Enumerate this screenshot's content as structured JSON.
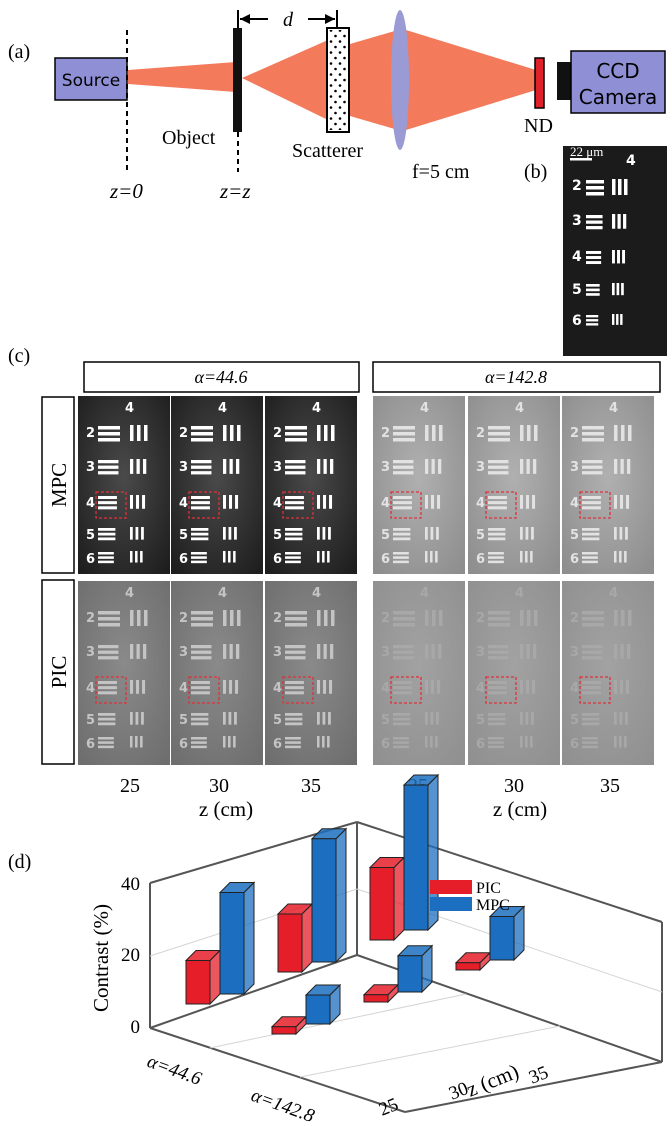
{
  "panel_a": {
    "label": "(a)",
    "source_label": "Source",
    "object_label": "Object",
    "scatterer_label": "Scatterer",
    "lens_label": "f=5 cm",
    "nd_label": "ND",
    "camera_label_line1": "CCD",
    "camera_label_line2": "Camera",
    "distance_label": "d",
    "z0_label": "z=0",
    "zz_label": "z=z"
  },
  "panel_b": {
    "label": "(b)",
    "scale_bar": "22 μm",
    "group_number": "4",
    "element_numbers": [
      "2",
      "3",
      "4",
      "5",
      "6"
    ]
  },
  "panel_c": {
    "label": "(c)",
    "alpha_left": "α=44.6",
    "alpha_right": "α=142.8",
    "row_labels": [
      "MPC",
      "PIC"
    ],
    "z_ticks": [
      "25",
      "30",
      "35"
    ],
    "z_axis_label": "z (cm)"
  },
  "panel_d": {
    "label": "(d)",
    "ylabel": "Contrast (%)",
    "yticks": [
      "0",
      "20",
      "40"
    ],
    "alpha_ticks": [
      "α=44.6",
      "α=142.8"
    ],
    "z_ticks": [
      "25",
      "30",
      "35"
    ],
    "z_axis_label": "z (cm)",
    "legend": [
      "PIC",
      "MPC"
    ]
  },
  "colors": {
    "beam": "#f47a5c",
    "box_fill": "#8f8fd6",
    "lens": "#9a9ad4",
    "nd_filter": "#e0202a",
    "pic_bar": "#e61e2a",
    "mpc_bar": "#1c6fc0"
  },
  "chart_data": {
    "type": "bar",
    "title": "",
    "xlabel": "z (cm)",
    "ylabel": "Contrast (%)",
    "ylim": [
      0,
      40
    ],
    "categories": [
      "25",
      "30",
      "35"
    ],
    "groups": [
      "α=44.6",
      "α=142.8"
    ],
    "series": [
      {
        "name": "PIC",
        "group": "α=44.6",
        "values": [
          12,
          16,
          20
        ]
      },
      {
        "name": "MPC",
        "group": "α=44.6",
        "values": [
          28,
          34,
          40
        ]
      },
      {
        "name": "PIC",
        "group": "α=142.8",
        "values": [
          2,
          2,
          2
        ]
      },
      {
        "name": "MPC",
        "group": "α=142.8",
        "values": [
          8,
          10,
          12
        ]
      }
    ],
    "grid": true,
    "legend_position": "top-right"
  }
}
